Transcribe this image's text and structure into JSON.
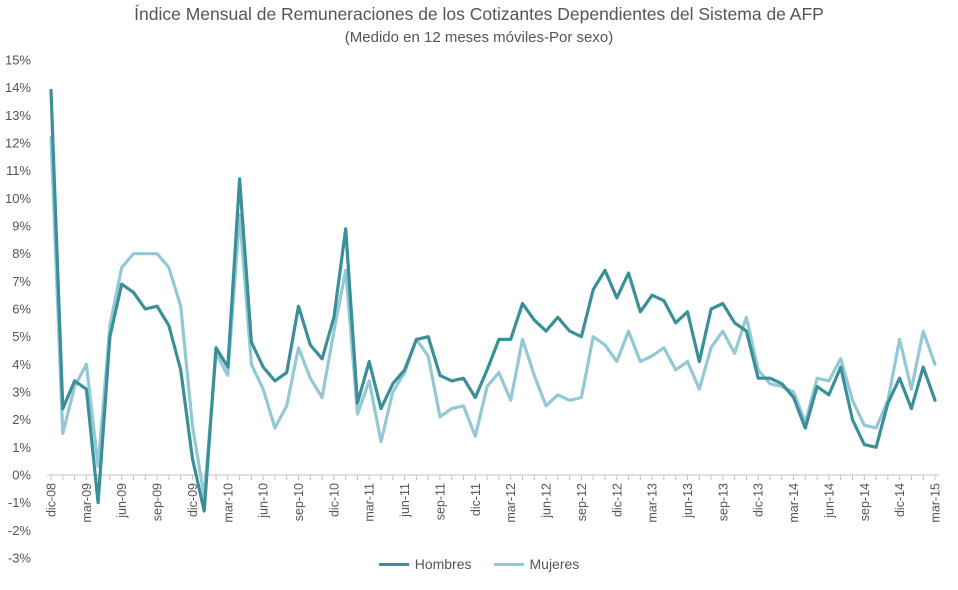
{
  "title": "Índice Mensual de Remuneraciones de los Cotizantes Dependientes del Sistema de AFP",
  "subtitle": "(Medido en 12 meses móviles-Por sexo)",
  "colors": {
    "hombres": "#3a8f98",
    "mujeres": "#93c8d5",
    "axis": "#bfbfbf",
    "text": "#555555"
  },
  "chart_data": {
    "type": "line",
    "title": "Índice Mensual de Remuneraciones de los Cotizantes Dependientes del Sistema de AFP",
    "subtitle": "(Medido en 12 meses móviles-Por sexo)",
    "xlabel": "",
    "ylabel": "",
    "ylim": [
      -3,
      15
    ],
    "y_ticks": [
      "-3%",
      "-2%",
      "-1%",
      "0%",
      "1%",
      "2%",
      "3%",
      "4%",
      "5%",
      "6%",
      "7%",
      "8%",
      "9%",
      "10%",
      "11%",
      "12%",
      "13%",
      "14%",
      "15%"
    ],
    "grid": false,
    "legend_position": "bottom",
    "x": [
      "dic-08",
      "ene-09",
      "feb-09",
      "mar-09",
      "abr-09",
      "may-09",
      "jun-09",
      "jul-09",
      "ago-09",
      "sep-09",
      "oct-09",
      "nov-09",
      "dic-09",
      "ene-10",
      "feb-10",
      "mar-10",
      "abr-10",
      "may-10",
      "jun-10",
      "jul-10",
      "ago-10",
      "sep-10",
      "oct-10",
      "nov-10",
      "dic-10",
      "ene-11",
      "feb-11",
      "mar-11",
      "abr-11",
      "may-11",
      "jun-11",
      "jul-11",
      "ago-11",
      "sep-11",
      "oct-11",
      "nov-11",
      "dic-11",
      "ene-12",
      "feb-12",
      "mar-12",
      "abr-12",
      "may-12",
      "jun-12",
      "jul-12",
      "ago-12",
      "sep-12",
      "oct-12",
      "nov-12",
      "dic-12",
      "ene-13",
      "feb-13",
      "mar-13",
      "abr-13",
      "may-13",
      "jun-13",
      "jul-13",
      "ago-13",
      "sep-13",
      "oct-13",
      "nov-13",
      "dic-13",
      "ene-14",
      "feb-14",
      "mar-14",
      "abr-14",
      "may-14",
      "jun-14",
      "jul-14",
      "ago-14",
      "sep-14",
      "oct-14",
      "nov-14",
      "dic-14",
      "ene-15",
      "feb-15",
      "mar-15"
    ],
    "x_tick_labels": [
      "dic-08",
      "mar-09",
      "jun-09",
      "sep-09",
      "dic-09",
      "mar-10",
      "jun-10",
      "sep-10",
      "dic-10",
      "mar-11",
      "jun-11",
      "sep-11",
      "dic-11",
      "mar-12",
      "jun-12",
      "sep-12",
      "dic-12",
      "mar-13",
      "jun-13",
      "sep-13",
      "dic-13",
      "mar-14",
      "jun-14",
      "sep-14",
      "dic-14",
      "mar-15"
    ],
    "series": [
      {
        "name": "Hombres",
        "color": "#3a8f98",
        "values": [
          13.9,
          2.4,
          3.4,
          3.1,
          -1.0,
          5.0,
          6.9,
          6.6,
          6.0,
          6.1,
          5.4,
          3.8,
          0.6,
          -1.3,
          4.6,
          3.9,
          10.7,
          4.8,
          3.9,
          3.4,
          3.7,
          6.1,
          4.7,
          4.2,
          5.7,
          8.9,
          2.6,
          4.1,
          2.4,
          3.3,
          3.8,
          4.9,
          5.0,
          3.6,
          3.4,
          3.5,
          2.8,
          3.8,
          4.9,
          4.9,
          6.2,
          5.6,
          5.2,
          5.7,
          5.2,
          5.0,
          6.7,
          7.4,
          6.4,
          7.3,
          5.9,
          6.5,
          6.3,
          5.5,
          5.9,
          4.1,
          6.0,
          6.2,
          5.5,
          5.2,
          3.5,
          3.5,
          3.3,
          2.8,
          1.7,
          3.2,
          2.9,
          3.9,
          2.0,
          1.1,
          1.0,
          2.6,
          3.5,
          2.4,
          3.9,
          2.7
        ]
      },
      {
        "name": "Mujeres",
        "color": "#93c8d5",
        "values": [
          12.2,
          1.5,
          3.2,
          4.0,
          0.3,
          5.4,
          7.5,
          8.0,
          8.0,
          8.0,
          7.5,
          6.1,
          1.8,
          -0.8,
          4.4,
          3.6,
          9.4,
          4.0,
          3.1,
          1.7,
          2.5,
          4.6,
          3.5,
          2.8,
          5.2,
          7.4,
          2.2,
          3.4,
          1.2,
          3.0,
          3.7,
          4.9,
          4.3,
          2.1,
          2.4,
          2.5,
          1.4,
          3.2,
          3.7,
          2.7,
          4.9,
          3.6,
          2.5,
          2.9,
          2.7,
          2.8,
          5.0,
          4.7,
          4.1,
          5.2,
          4.1,
          4.3,
          4.6,
          3.8,
          4.1,
          3.1,
          4.6,
          5.2,
          4.4,
          5.7,
          3.8,
          3.3,
          3.2,
          3.0,
          1.9,
          3.5,
          3.4,
          4.2,
          2.7,
          1.8,
          1.7,
          2.7,
          4.9,
          3.1,
          5.2,
          4.0
        ]
      }
    ]
  }
}
